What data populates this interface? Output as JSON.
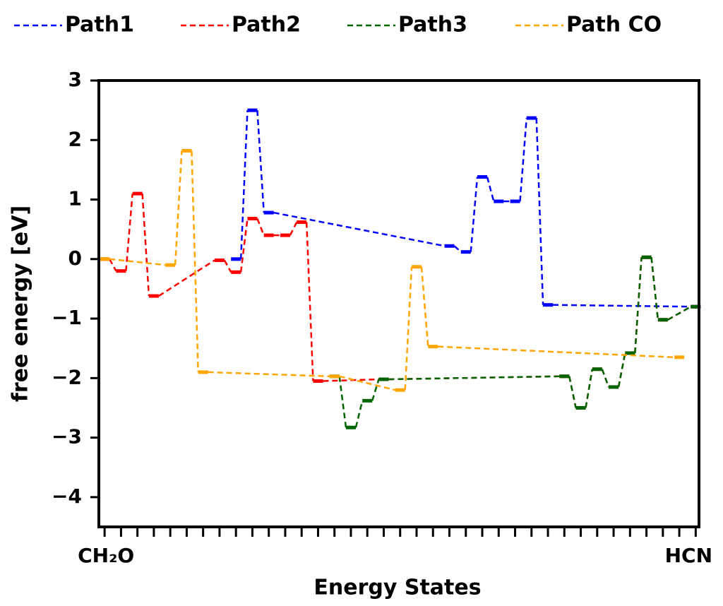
{
  "chart_data": {
    "type": "energy-levels",
    "xlabel": "Energy States",
    "ylabel": "free energy [eV]",
    "categories": [
      "CH₂O",
      null,
      null,
      null,
      null,
      null,
      null,
      null,
      null,
      null,
      null,
      null,
      null,
      null,
      null,
      null,
      null,
      null,
      null,
      null,
      null,
      null,
      null,
      null,
      null,
      null,
      null,
      null,
      null,
      null,
      null,
      null,
      null,
      null,
      null,
      null,
      "HCN"
    ],
    "xlim": [
      -0.35,
      36.2
    ],
    "ylim": [
      -4.5,
      3
    ],
    "yticks": [
      {
        "value": -4,
        "label": "−4"
      },
      {
        "value": -3,
        "label": "−3"
      },
      {
        "value": -2,
        "label": "−2"
      },
      {
        "value": -1,
        "label": "−1"
      },
      0,
      1,
      2,
      3
    ],
    "legend": "top",
    "series": [
      {
        "name": "Path1",
        "color": "#0000ff",
        "x": [
          8,
          9,
          10,
          21,
          22,
          23,
          24,
          25,
          26,
          27,
          36
        ],
        "values": [
          0.0,
          2.5,
          0.78,
          0.22,
          0.12,
          1.38,
          0.97,
          0.97,
          2.37,
          -0.77,
          -0.8
        ]
      },
      {
        "name": "Path2",
        "color": "#ff0000",
        "x": [
          0,
          1,
          2,
          3,
          7,
          8,
          9,
          10,
          11,
          12,
          13,
          17,
          28,
          29,
          30,
          31,
          32,
          33,
          34,
          36
        ],
        "values": [
          0.0,
          -0.2,
          1.1,
          -0.62,
          -0.02,
          -0.22,
          0.68,
          0.4,
          0.4,
          0.62,
          -2.05,
          -2.02,
          -1.97,
          -2.5,
          -1.85,
          -2.15,
          -1.58,
          0.03,
          -1.02,
          -0.8
        ]
      },
      {
        "name": "Path3",
        "color": "#006400",
        "x": [
          14,
          15,
          16,
          17,
          28,
          29,
          30,
          31,
          32,
          33,
          34,
          36
        ],
        "values": [
          -1.97,
          -2.83,
          -2.38,
          -2.02,
          -1.97,
          -2.5,
          -1.85,
          -2.15,
          -1.58,
          0.03,
          -1.02,
          -0.8
        ]
      },
      {
        "name": "Path CO",
        "color": "#ffa500",
        "x": [
          0,
          4,
          5,
          6,
          14,
          18,
          19,
          20,
          35
        ],
        "values": [
          0.0,
          -0.1,
          1.82,
          -1.9,
          -1.97,
          -2.2,
          -0.13,
          -1.47,
          -1.65
        ]
      }
    ]
  }
}
